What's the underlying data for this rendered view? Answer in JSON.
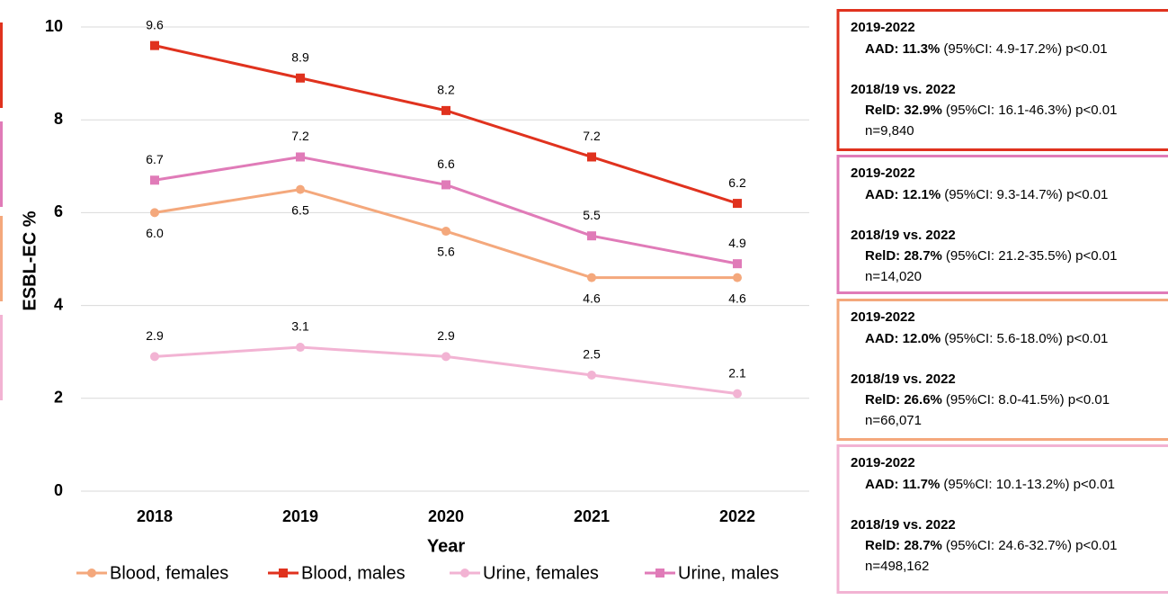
{
  "chart_data": {
    "type": "line",
    "x_label": "Year",
    "y_label": "ESBL-EC %",
    "categories": [
      "2018",
      "2019",
      "2020",
      "2021",
      "2022"
    ],
    "ylim": [
      0,
      10
    ],
    "yticks": [
      0,
      2,
      4,
      6,
      8,
      10
    ],
    "grid": true,
    "legend": "bottom",
    "series": [
      {
        "name": "Blood, females",
        "color": "#f4a87c",
        "marker": "circle",
        "label_position": "below",
        "values": [
          6.0,
          6.5,
          5.6,
          4.6,
          4.6
        ],
        "value_labels": [
          "6.0",
          "6.5",
          "5.6",
          "4.6",
          "4.6"
        ]
      },
      {
        "name": "Blood, males",
        "color": "#e0321e",
        "marker": "square",
        "label_position": "above",
        "values": [
          9.6,
          8.9,
          8.2,
          7.2,
          6.2
        ],
        "value_labels": [
          "9.6",
          "8.9",
          "8.2",
          "7.2",
          "6.2"
        ]
      },
      {
        "name": "Urine, females",
        "color": "#f2b3d3",
        "marker": "circle",
        "label_position": "above",
        "values": [
          2.9,
          3.1,
          2.9,
          2.5,
          2.1
        ],
        "value_labels": [
          "2.9",
          "3.1",
          "2.9",
          "2.5",
          "2.1"
        ]
      },
      {
        "name": "Urine, males",
        "color": "#e07bb8",
        "marker": "square",
        "label_position": "above",
        "values": [
          6.7,
          7.2,
          6.6,
          5.5,
          4.9
        ],
        "value_labels": [
          "6.7",
          "7.2",
          "6.6",
          "5.5",
          "4.9"
        ]
      }
    ],
    "annotations": [
      {
        "color": "#e0321e",
        "period": "2019-2022",
        "aad_label": "AAD: 11.3%",
        "aad_detail": "(95%CI: 4.9-17.2%) p<0.01",
        "comparison": "2018/19 vs. 2022",
        "reld_label": "RelD: 32.9%",
        "reld_detail": "(95%CI: 16.1-46.3%) p<0.01",
        "n": "n=9,840"
      },
      {
        "color": "#e07bb8",
        "period": "2019-2022",
        "aad_label": "AAD: 12.1%",
        "aad_detail": "(95%CI: 9.3-14.7%) p<0.01",
        "comparison": "2018/19 vs. 2022",
        "reld_label": "RelD: 28.7%",
        "reld_detail": "(95%CI: 21.2-35.5%) p<0.01",
        "n": "n=14,020"
      },
      {
        "color": "#f4a87c",
        "period": "2019-2022",
        "aad_label": "AAD: 12.0%",
        "aad_detail": "(95%CI: 5.6-18.0%) p<0.01",
        "comparison": "2018/19 vs. 2022",
        "reld_label": "RelD: 26.6%",
        "reld_detail": "(95%CI: 8.0-41.5%) p<0.01",
        "n": "n=66,071"
      },
      {
        "color": "#f2b3d3",
        "period": "2019-2022",
        "aad_label": "AAD: 11.7%",
        "aad_detail": "(95%CI: 10.1-13.2%) p<0.01",
        "comparison": "2018/19 vs. 2022",
        "reld_label": "RelD: 28.7%",
        "reld_detail": "(95%CI: 24.6-32.7%) p<0.01",
        "n": "n=498,162"
      }
    ]
  }
}
